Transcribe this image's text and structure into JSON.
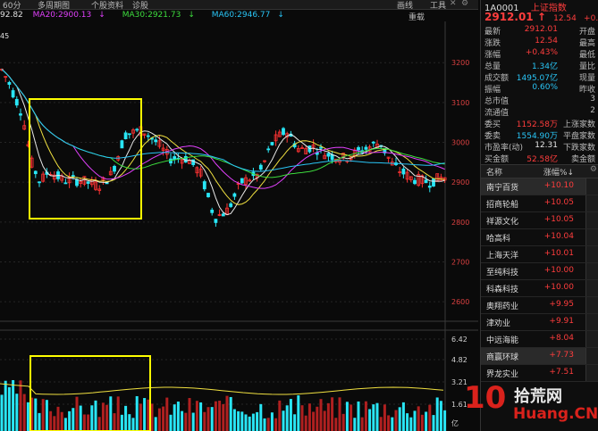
{
  "toolbar": {
    "period": "60分",
    "multi": "多周期图",
    "fundamentals": "个股资料",
    "diagnose": "诊股",
    "draw": "画线",
    "tools": "工具",
    "overlay": "重载"
  },
  "ma": {
    "first": "92.82",
    "ma20": "MA20:2900.13",
    "ma30": "MA30:2921.73",
    "ma60": "MA60:2946.77",
    "arrow": "↓"
  },
  "chart_data": {
    "type": "candlestick",
    "y_ticks": [
      "3200",
      "3100",
      "3000",
      "2900",
      "2800",
      "2700",
      "2600"
    ],
    "ylim": [
      2560,
      3290
    ],
    "high_label": "45",
    "volume_ticks": [
      "6.42",
      "4.82",
      "3.21",
      "1.61",
      "亿"
    ],
    "highlight_boxes": 2
  },
  "quote": {
    "code": "1A0001",
    "name": "上证指数",
    "price": "2912.01",
    "arrow": "↑",
    "change": "12.54",
    "pct": "+0.43%",
    "rows": [
      {
        "label": "最新",
        "value": "2912.01",
        "label2": "开盘",
        "color": "red"
      },
      {
        "label": "涨跌",
        "value": "12.54",
        "label2": "最高",
        "color": "red"
      },
      {
        "label": "涨幅",
        "value": "+0.43%",
        "label2": "最低",
        "color": "red"
      },
      {
        "label": "总量",
        "value": "1.34亿",
        "label2": "量比",
        "color": "cyan"
      },
      {
        "label": "成交额",
        "value": "1495.07亿",
        "label2": "现量",
        "color": "cyan"
      },
      {
        "label": "振幅",
        "value": "0.60%",
        "label2": "昨收",
        "color": "cyan"
      },
      {
        "label": "总市值",
        "value": "",
        "label2": "3",
        "color": "white"
      },
      {
        "label": "流通值",
        "value": "",
        "label2": "2",
        "color": "white"
      },
      {
        "label": "委买",
        "value": "1152.58万",
        "label2": "上涨家数",
        "color": "red"
      },
      {
        "label": "委卖",
        "value": "1554.90万",
        "label2": "平盘家数",
        "color": "cyan"
      },
      {
        "label": "市盈率(动)",
        "value": "12.31",
        "label2": "下跌家数",
        "color": "white"
      },
      {
        "label": "买金额",
        "value": "52.58亿",
        "label2": "卖金额",
        "color": "red"
      }
    ]
  },
  "stock_list": {
    "col_name": "名称",
    "col_pct": "涨幅%↓",
    "items": [
      {
        "name": "南宁百货",
        "pct": "+10.10"
      },
      {
        "name": "招商轮船",
        "pct": "+10.05"
      },
      {
        "name": "祥源文化",
        "pct": "+10.05"
      },
      {
        "name": "哈高科",
        "pct": "+10.04"
      },
      {
        "name": "上海天洋",
        "pct": "+10.01"
      },
      {
        "name": "至纯科技",
        "pct": "+10.00"
      },
      {
        "name": "科森科技",
        "pct": "+10.00"
      },
      {
        "name": "奥翔药业",
        "pct": "+9.95"
      },
      {
        "name": "津劝业",
        "pct": "+9.91"
      },
      {
        "name": "中远海能",
        "pct": "+8.04"
      },
      {
        "name": "商赢环球",
        "pct": "+7.73"
      },
      {
        "name": "界龙实业",
        "pct": "+7.51"
      }
    ]
  },
  "watermark": {
    "num": "10",
    "cn": "拾荒网",
    "site": "Huang.CN"
  }
}
